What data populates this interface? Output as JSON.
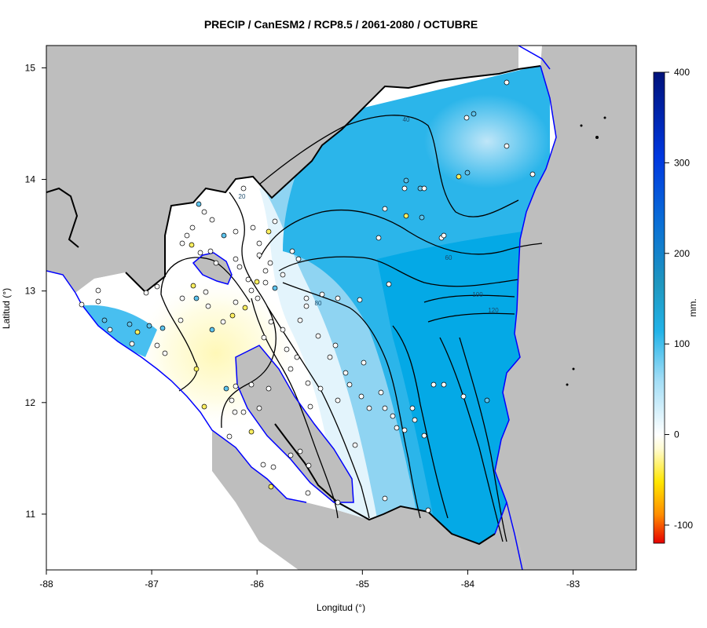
{
  "title": "PRECIP / CanESM2 / RCP8.5 / 2061-2080 / OCTUBRE",
  "axes": {
    "xlabel": "Longitud (°)",
    "ylabel": "Latitud (°)",
    "xlim": [
      -88,
      -82.4
    ],
    "ylim": [
      10.5,
      15.2
    ],
    "xticks": [
      -88,
      -87,
      -86,
      -85,
      -84,
      -83
    ],
    "yticks": [
      11,
      12,
      13,
      14,
      15
    ]
  },
  "colorbar": {
    "label": "mm.",
    "min": -120,
    "max": 400,
    "ticks": [
      -100,
      0,
      100,
      200,
      300,
      400
    ]
  },
  "contours": [
    {
      "value": 20,
      "label": "20"
    },
    {
      "value": 40,
      "label": "40"
    },
    {
      "value": 60,
      "label": "60"
    },
    {
      "value": 80,
      "label": "80"
    },
    {
      "value": 100,
      "label": "100"
    },
    {
      "value": 120,
      "label": "120"
    }
  ],
  "colors": {
    "land_gray": "#bebebe",
    "coastline_blue": "#0000ff",
    "country_border": "#000000",
    "dry_yellow": "#fffcc4",
    "wet_blue": "#00a8e6"
  }
}
